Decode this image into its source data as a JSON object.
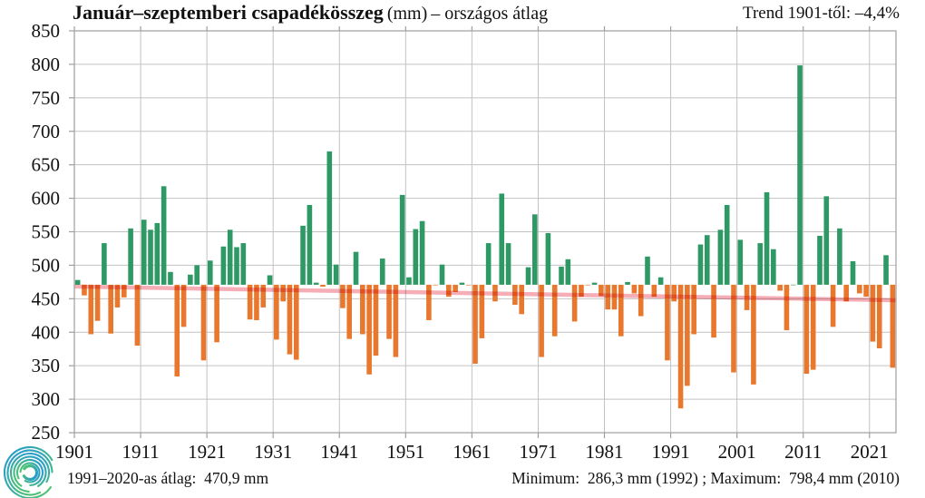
{
  "title": {
    "main": "Január–szeptemberi csapadékösszeg",
    "unit": "(mm)",
    "suffix": "– országos átlag"
  },
  "trend_label": "Trend 1901-től: –4,4%",
  "footer": {
    "left": "1991–2020-as átlag:  470,9 mm",
    "right": "Minimum:  286,3 mm (1992) ; Maximum:  798,4 mm (2010)"
  },
  "colors": {
    "above_average_bar": "#2E9965",
    "below_average_bar": "#E8782D",
    "trend_line": "#F5ADB6",
    "gridline": "#c2c2c2",
    "frame": "#9e9e9e",
    "logo_teal": "#2b9ec7",
    "logo_green": "#4cc273"
  },
  "logo_name": "hungaromet-spiral-logo",
  "chart_data": {
    "type": "bar",
    "title": "Január–szeptemberi csapadékösszeg (mm) – országos átlag",
    "xlabel": "",
    "ylabel": "",
    "ylim": [
      250,
      850
    ],
    "ytick_step": 50,
    "yticks": [
      850,
      800,
      750,
      700,
      650,
      600,
      550,
      500,
      450,
      400,
      350,
      300,
      250
    ],
    "xticks": [
      1901,
      1911,
      1921,
      1931,
      1941,
      1951,
      1961,
      1971,
      1981,
      1991,
      2001,
      2011,
      2021
    ],
    "grid": true,
    "baseline_value": 470.9,
    "baseline_meaning": "1991–2020-as átlag",
    "trend": {
      "start_year": 1901,
      "end_year": 2024,
      "start_value": 468.3,
      "end_value": 447.7,
      "change_percent": -4.4
    },
    "minimum": {
      "value_mm": 286.3,
      "year": 1992
    },
    "maximum": {
      "value_mm": 798.4,
      "year": 2010
    },
    "year_start": 1901,
    "year_end": 2024,
    "values": [
      478,
      455,
      397,
      417,
      533,
      398,
      437,
      452,
      555,
      380,
      568,
      553,
      563,
      618,
      490,
      334,
      408,
      486,
      500,
      358,
      507,
      385,
      528,
      553,
      527,
      533,
      419,
      418,
      437,
      485,
      389,
      446,
      367,
      359,
      559,
      590,
      474,
      468,
      670,
      501,
      436,
      390,
      520,
      397,
      337,
      365,
      510,
      390,
      363,
      605,
      482,
      554,
      566,
      418,
      470,
      501,
      453,
      460,
      474,
      470,
      353,
      391,
      533,
      446,
      607,
      533,
      441,
      427,
      497,
      576,
      363,
      548,
      394,
      498,
      509,
      416,
      453,
      470,
      474,
      454,
      434,
      434,
      394,
      475,
      458,
      424,
      513,
      453,
      482,
      358,
      446,
      286.3,
      320,
      397,
      531,
      545,
      392,
      553,
      590,
      340,
      538,
      433,
      322,
      533,
      609,
      524,
      462,
      403,
      471,
      798.4,
      338,
      344,
      544,
      603,
      408,
      555,
      446,
      506,
      458,
      453,
      386,
      376,
      515,
      347
    ]
  }
}
